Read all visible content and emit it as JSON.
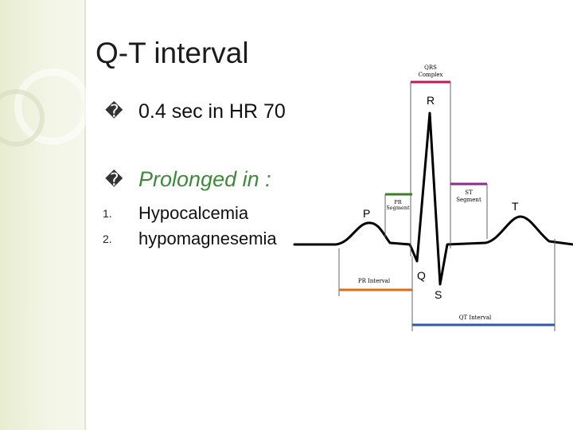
{
  "slide": {
    "title": "Q-T interval",
    "bullets": [
      {
        "marker": "�",
        "text": "0.4 sec in HR 70"
      },
      {
        "marker": "�",
        "text": "Prolonged in :"
      }
    ],
    "numbered_items": [
      {
        "number": "1.",
        "text": "Hypocalcemia"
      },
      {
        "number": "2.",
        "text": "hypomagnesemia"
      }
    ]
  },
  "figure": {
    "qrs_complex_label": "QRS Complex",
    "qrs_complex_line1": "QRS",
    "qrs_complex_line2": "Complex",
    "pr_segment_line1": "PR",
    "pr_segment_line2": "Segment",
    "st_segment_line1": "ST",
    "st_segment_line2": "Segment",
    "pr_interval_label": "PR Interval",
    "qt_interval_label": "QT Interval",
    "wave_labels": {
      "p": "P",
      "q": "Q",
      "r": "R",
      "s": "S",
      "t": "T"
    },
    "colors": {
      "qrs_complex": "#c2185b",
      "pr_segment": "#3f7d2b",
      "st_segment": "#8e2a8e",
      "pr_interval": "#e06c10",
      "qt_interval": "#2f5aa8",
      "trace": "#000000",
      "title_accent_green": "#3f8a3a"
    }
  }
}
